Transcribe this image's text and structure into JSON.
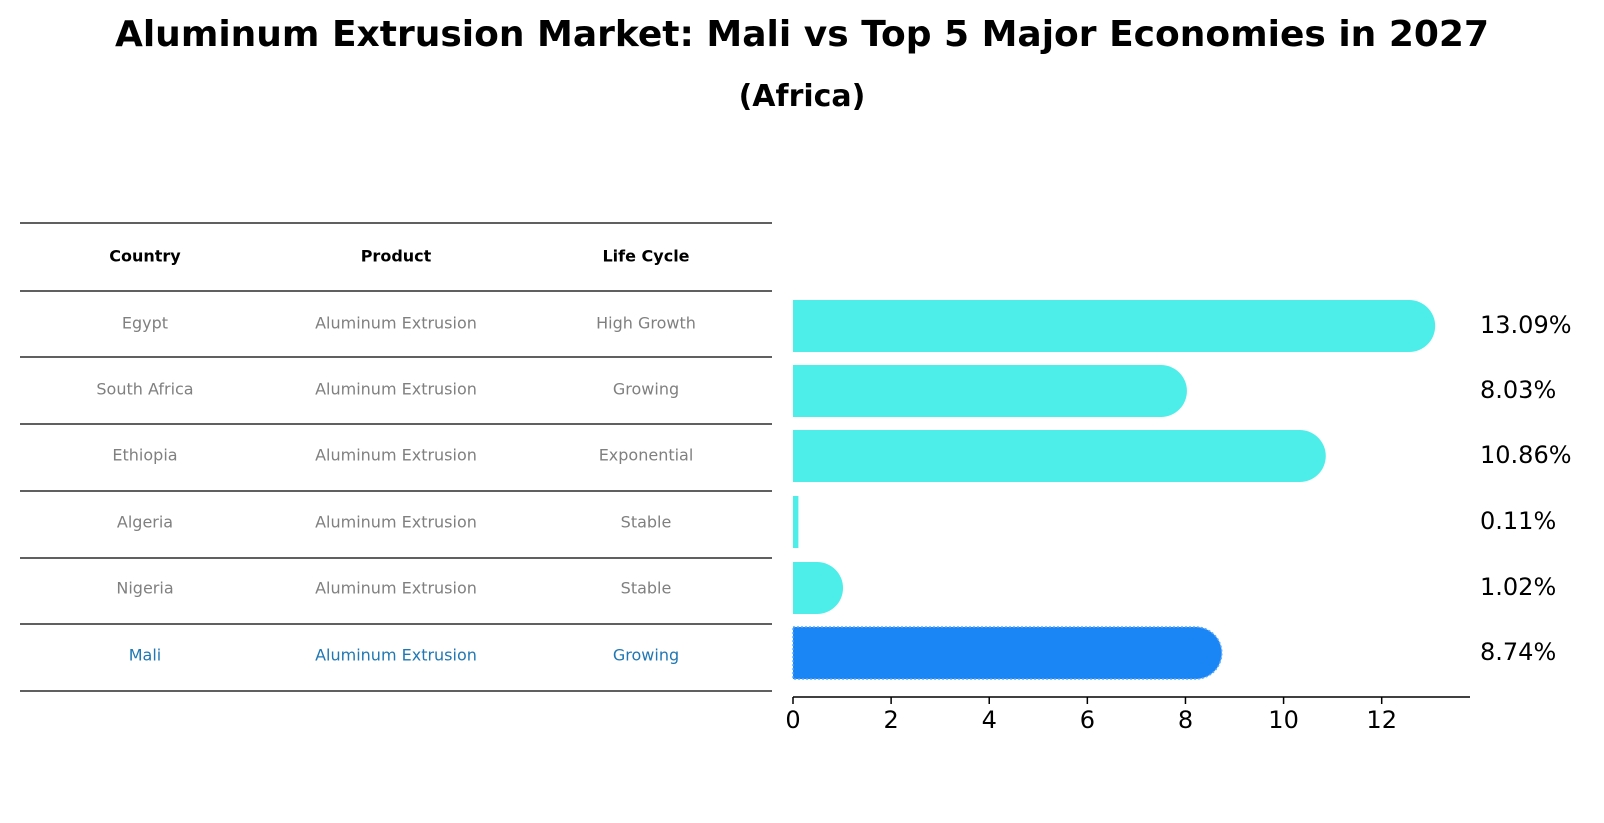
{
  "title": "Aluminum Extrusion Market: Mali vs Top 5 Major Economies in 2027",
  "subtitle": "(Africa)",
  "table": {
    "headers": [
      "Country",
      "Product",
      "Life Cycle"
    ],
    "rows": [
      {
        "country": "Egypt",
        "product": "Aluminum Extrusion",
        "life_cycle": "High Growth",
        "highlight": false
      },
      {
        "country": "South Africa",
        "product": "Aluminum Extrusion",
        "life_cycle": "Growing",
        "highlight": false
      },
      {
        "country": "Ethiopia",
        "product": "Aluminum Extrusion",
        "life_cycle": "Exponential",
        "highlight": false
      },
      {
        "country": "Algeria",
        "product": "Aluminum Extrusion",
        "life_cycle": "Stable",
        "highlight": false
      },
      {
        "country": "Nigeria",
        "product": "Aluminum Extrusion",
        "life_cycle": "Stable",
        "highlight": false
      },
      {
        "country": "Mali",
        "product": "Aluminum Extrusion",
        "life_cycle": "Growing",
        "highlight": true
      }
    ]
  },
  "colors": {
    "bar": "#4DEEEA",
    "highlight_bar": "#1A85F5",
    "highlight_text": "#1f77b4",
    "muted_text": "#808080",
    "line": "#000000"
  },
  "chart_data": {
    "type": "bar",
    "orientation": "horizontal",
    "categories": [
      "Egypt",
      "South Africa",
      "Ethiopia",
      "Algeria",
      "Nigeria",
      "Mali"
    ],
    "values": [
      13.09,
      8.03,
      10.86,
      0.11,
      1.02,
      8.74
    ],
    "value_labels": [
      "13.09%",
      "8.03%",
      "10.86%",
      "0.11%",
      "1.02%",
      "8.74%"
    ],
    "highlight_index": 5,
    "xlim": [
      0,
      13.8
    ],
    "xticks": [
      0,
      2,
      4,
      6,
      8,
      10,
      12
    ],
    "tick_labels": [
      "0",
      "2",
      "4",
      "6",
      "8",
      "10",
      "12"
    ],
    "xlabel": "",
    "ylabel": "",
    "grid": false
  }
}
